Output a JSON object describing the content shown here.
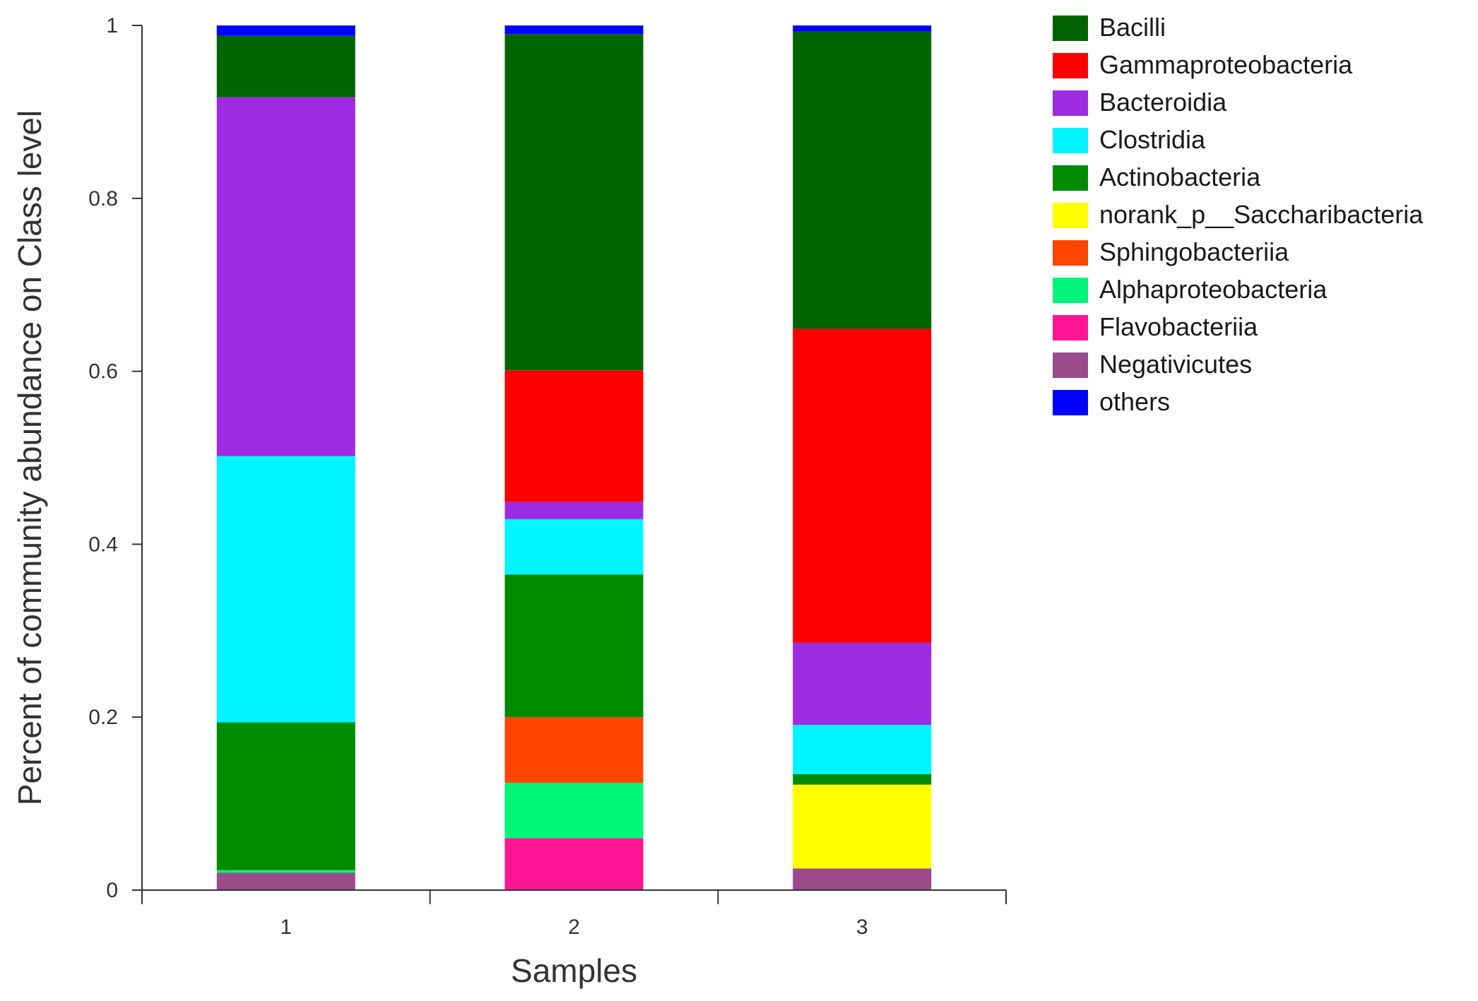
{
  "chart_data": {
    "type": "bar",
    "stacked": true,
    "categories": [
      "1",
      "2",
      "3"
    ],
    "xlabel": "Samples",
    "ylabel": "Percent of community abundance on Class level",
    "ylim": [
      0,
      1
    ],
    "yticks": [
      0,
      0.2,
      0.4,
      0.6,
      0.8,
      1
    ],
    "ytick_labels": [
      "0",
      "0.2",
      "0.4",
      "0.6",
      "0.8",
      "1"
    ],
    "grid": false,
    "legend_position": "right",
    "series": [
      {
        "name": "Negativicutes",
        "color": "#9b4a8c",
        "values": [
          0.02,
          0,
          0.025
        ]
      },
      {
        "name": "Flavobacteriia",
        "color": "#ff1493",
        "values": [
          0,
          0.06,
          0
        ]
      },
      {
        "name": "Alphaproteobacteria",
        "color": "#00f57a",
        "values": [
          0.003,
          0.064,
          0
        ]
      },
      {
        "name": "Sphingobacteriia",
        "color": "#ff4500",
        "values": [
          0,
          0.076,
          0
        ]
      },
      {
        "name": "norank_p__Saccharibacteria",
        "color": "#ffff00",
        "values": [
          0,
          0,
          0.097
        ]
      },
      {
        "name": "Actinobacteria",
        "color": "#008b00",
        "values": [
          0.171,
          0.165,
          0.012
        ]
      },
      {
        "name": "Clostridia",
        "color": "#00f5ff",
        "values": [
          0.308,
          0.064,
          0.057
        ]
      },
      {
        "name": "Bacteroidia",
        "color": "#9d2be2",
        "values": [
          0.415,
          0.02,
          0.095
        ]
      },
      {
        "name": "Gammaproteobacteria",
        "color": "#ff0000",
        "values": [
          0,
          0.152,
          0.363
        ]
      },
      {
        "name": "Bacilli",
        "color": "#006400",
        "values": [
          0.071,
          0.389,
          0.344
        ]
      },
      {
        "name": "others",
        "color": "#0000ff",
        "values": [
          0.012,
          0.01,
          0.007
        ]
      }
    ],
    "legend": [
      {
        "label": "Bacilli",
        "color": "#006400"
      },
      {
        "label": "Gammaproteobacteria",
        "color": "#ff0000"
      },
      {
        "label": "Bacteroidia",
        "color": "#9d2be2"
      },
      {
        "label": "Clostridia",
        "color": "#00f5ff"
      },
      {
        "label": "Actinobacteria",
        "color": "#008b00"
      },
      {
        "label": "norank_p__Saccharibacteria",
        "color": "#ffff00"
      },
      {
        "label": "Sphingobacteriia",
        "color": "#ff4500"
      },
      {
        "label": "Alphaproteobacteria",
        "color": "#00f57a"
      },
      {
        "label": "Flavobacteriia",
        "color": "#ff1493"
      },
      {
        "label": "Negativicutes",
        "color": "#9b4a8c"
      },
      {
        "label": "others",
        "color": "#0000ff"
      }
    ]
  }
}
